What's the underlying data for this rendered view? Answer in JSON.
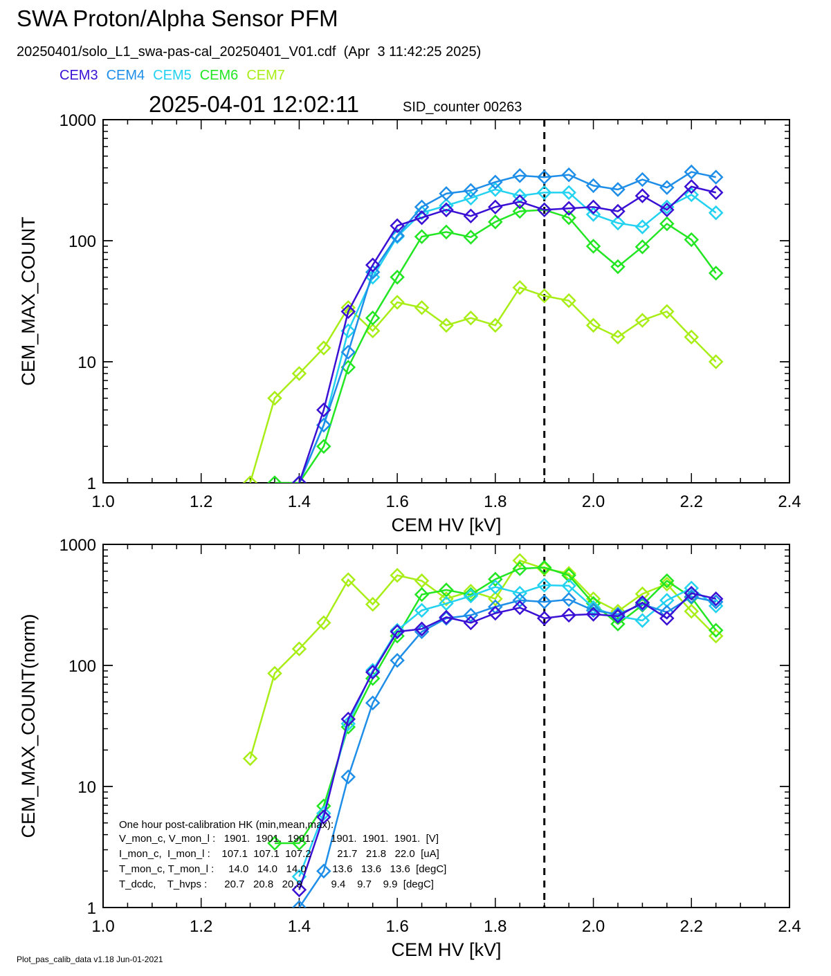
{
  "header": {
    "title": "SWA Proton/Alpha Sensor PFM",
    "subtitle": "20250401/solo_L1_swa-pas-cal_20250401_V01.cdf  (Apr  3 11:42:25 2025)",
    "timestamp": "2025-04-01 12:02:11",
    "sid_counter": "SID_counter 00263"
  },
  "footer": "Plot_pas_calib_data v1.18 Jun-01-2021",
  "hk": {
    "line0": "One hour post-calibration HK (min,mean,max):",
    "line1": "V_mon_c, V_mon_l :   1901.  1901.  1901.      1901.  1901.  1901.  [V]",
    "line2": "I_mon_c,  I_mon_l :    107.1  107.1  107.2         21.7   21.8   22.0  [uA]",
    "line3": "T_mon_c, T_mon_l :     14.0   14.0   14.0         13.6   13.6   13.6  [degC]",
    "line4": "T_dcdc,    T_hvps :      20.7   20.8   20.9          9.4    9.7    9.9  [degC]"
  },
  "colors": {
    "CEM3": "#3a10d4",
    "CEM4": "#1e8ee8",
    "CEM5": "#22d2f0",
    "CEM6": "#22e622",
    "CEM7": "#a8ee16"
  },
  "chart_data": [
    {
      "type": "line",
      "xlabel": "CEM HV [kV]",
      "ylabel": "CEM_MAX_COUNT",
      "xlim": [
        1.0,
        2.4
      ],
      "ylim": [
        1,
        1000
      ],
      "yscale": "log",
      "xticks": [
        "1.0",
        "1.2",
        "1.4",
        "1.6",
        "1.8",
        "2.0",
        "2.2",
        "2.4"
      ],
      "yticks": [
        "1",
        "10",
        "100",
        "1000"
      ],
      "vline": 1.9,
      "legend_position": "top-left",
      "x": [
        1.3,
        1.35,
        1.4,
        1.45,
        1.5,
        1.55,
        1.6,
        1.65,
        1.7,
        1.75,
        1.8,
        1.85,
        1.9,
        1.95,
        2.0,
        2.05,
        2.1,
        2.15,
        2.2,
        2.25
      ],
      "series": [
        {
          "name": "CEM3",
          "values": [
            null,
            null,
            1,
            4,
            26,
            63,
            133,
            155,
            180,
            160,
            190,
            210,
            180,
            185,
            190,
            175,
            235,
            180,
            280,
            250
          ]
        },
        {
          "name": "CEM4",
          "values": [
            null,
            null,
            1,
            3,
            12,
            55,
            110,
            190,
            245,
            260,
            305,
            345,
            335,
            350,
            285,
            265,
            320,
            275,
            370,
            335
          ]
        },
        {
          "name": "CEM5",
          "values": [
            null,
            null,
            1,
            3,
            18,
            50,
            108,
            170,
            195,
            225,
            265,
            235,
            250,
            250,
            165,
            140,
            130,
            190,
            240,
            170
          ]
        },
        {
          "name": "CEM6",
          "values": [
            null,
            1,
            1,
            2,
            9,
            23,
            50,
            108,
            118,
            107,
            143,
            175,
            180,
            155,
            90,
            61,
            89,
            138,
            102,
            54
          ]
        },
        {
          "name": "CEM7",
          "values": [
            1,
            5,
            8,
            13,
            28,
            18,
            31,
            28,
            20,
            23,
            20,
            41,
            35,
            32,
            20,
            16,
            22,
            26,
            16,
            10
          ]
        }
      ]
    },
    {
      "type": "line",
      "xlabel": "CEM HV [kV]",
      "ylabel": "CEM_MAX_COUNT(norm)",
      "xlim": [
        1.0,
        2.4
      ],
      "ylim": [
        1,
        1000
      ],
      "yscale": "log",
      "xticks": [
        "1.0",
        "1.2",
        "1.4",
        "1.6",
        "1.8",
        "2.0",
        "2.2",
        "2.4"
      ],
      "yticks": [
        "1",
        "10",
        "100",
        "1000"
      ],
      "vline": 1.9,
      "x": [
        1.3,
        1.35,
        1.4,
        1.45,
        1.5,
        1.55,
        1.6,
        1.65,
        1.7,
        1.75,
        1.8,
        1.85,
        1.9,
        1.95,
        2.0,
        2.05,
        2.1,
        2.15,
        2.2,
        2.25
      ],
      "series": [
        {
          "name": "CEM3",
          "values": [
            null,
            null,
            1.4,
            5.6,
            36,
            88,
            190,
            200,
            250,
            225,
            270,
            300,
            245,
            260,
            265,
            255,
            330,
            245,
            395,
            355
          ]
        },
        {
          "name": "CEM4",
          "values": [
            null,
            null,
            1,
            2,
            12,
            49,
            110,
            190,
            245,
            260,
            305,
            345,
            335,
            350,
            285,
            265,
            320,
            275,
            370,
            335
          ]
        },
        {
          "name": "CEM5",
          "values": [
            null,
            null,
            1.8,
            6,
            33,
            91,
            195,
            285,
            325,
            375,
            445,
            395,
            460,
            455,
            300,
            255,
            235,
            345,
            435,
            310
          ]
        },
        {
          "name": "CEM6",
          "values": [
            null,
            3.4,
            3.4,
            6.9,
            31,
            78,
            175,
            385,
            420,
            385,
            515,
            630,
            645,
            555,
            325,
            220,
            315,
            500,
            365,
            195
          ]
        },
        {
          "name": "CEM7",
          "values": [
            17,
            86,
            137,
            225,
            510,
            320,
            555,
            500,
            355,
            410,
            355,
            735,
            630,
            575,
            355,
            280,
            390,
            470,
            280,
            175
          ]
        }
      ]
    }
  ]
}
